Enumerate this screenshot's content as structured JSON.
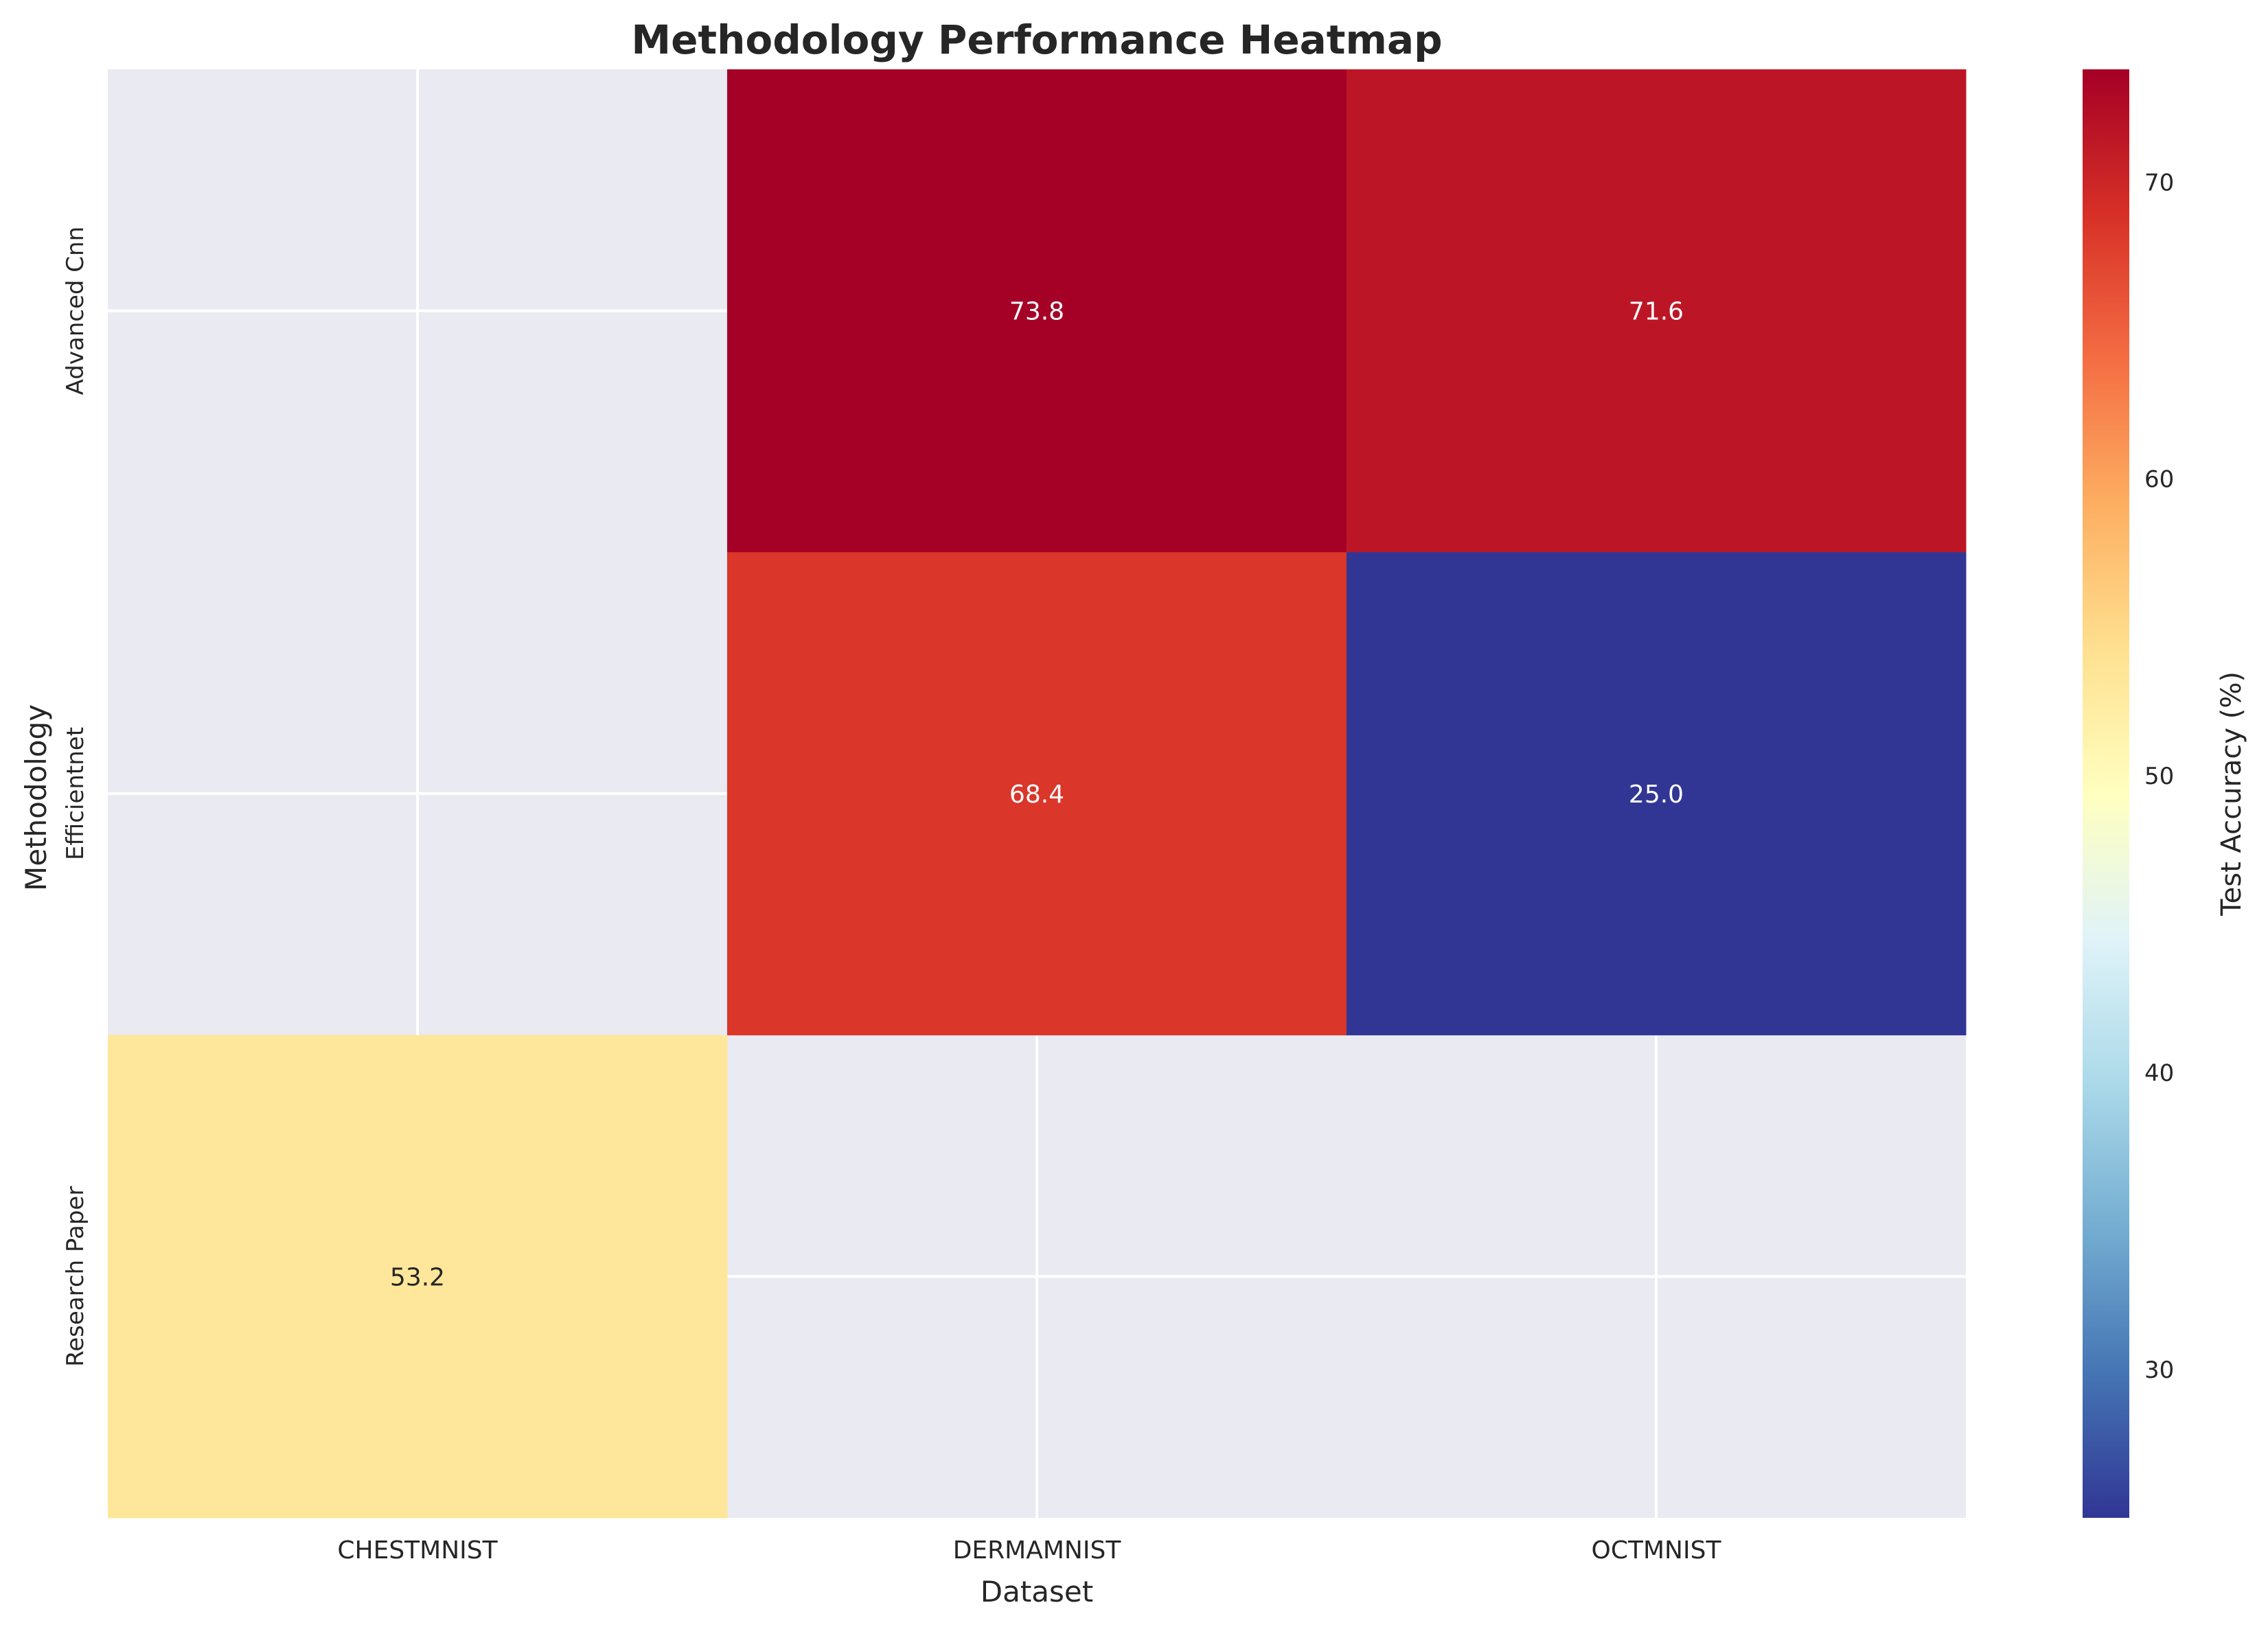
{
  "chart_data": {
    "type": "heatmap",
    "title": "Methodology Performance Heatmap",
    "xlabel": "Dataset",
    "ylabel": "Methodology",
    "x_categories": [
      "CHESTMNIST",
      "DERMAMNIST",
      "OCTMNIST"
    ],
    "y_categories": [
      "Advanced Cnn",
      "Efficientnet",
      "Research Paper"
    ],
    "values": [
      [
        null,
        73.8,
        71.6
      ],
      [
        null,
        68.4,
        25.0
      ],
      [
        53.2,
        null,
        null
      ]
    ],
    "value_format": "0.1f",
    "colorbar": {
      "label": "Test Accuracy (%)",
      "colormap": "RdYlBu_r",
      "range": [
        25.0,
        73.8
      ],
      "ticks": [
        30,
        40,
        50,
        60,
        70
      ]
    },
    "missing_color": "#eaeaf2",
    "grid": true
  }
}
